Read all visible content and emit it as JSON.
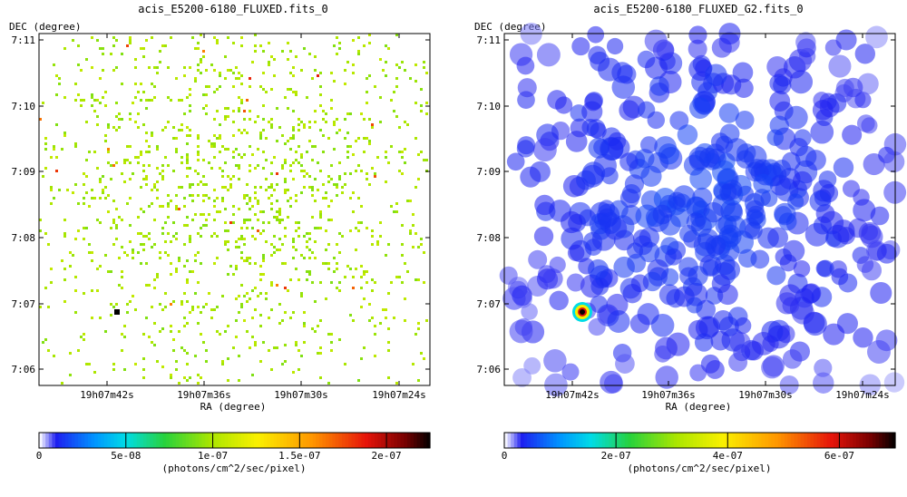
{
  "chart_data": [
    {
      "type": "heatmap",
      "title": "acis_E5200-6180_FLUXED.fits_0",
      "xlabel": "RA (degree)",
      "ylabel": "DEC (degree)",
      "x_ticks": [
        "19h07m42s",
        "19h07m36s",
        "19h07m30s",
        "19h07m24s"
      ],
      "y_ticks": [
        "7:11",
        "7:10",
        "7:09",
        "7:08",
        "7:07",
        "7:06"
      ],
      "colorbar": {
        "label": "(photons/cm^2/sec/pixel)",
        "range": [
          0,
          2.25e-07
        ],
        "ticks": [
          {
            "label": "0",
            "value": 0
          },
          {
            "label": "5e-08",
            "value": 5e-08
          },
          {
            "label": "1e-07",
            "value": 1e-07
          },
          {
            "label": "1.5e-07",
            "value": 1.5e-07
          },
          {
            "label": "2e-07",
            "value": 2e-07
          }
        ]
      },
      "description_seed": 7,
      "style": "sparse"
    },
    {
      "type": "heatmap",
      "title": "acis_E5200-6180_FLUXED_G2.fits_0",
      "xlabel": "RA (degree)",
      "ylabel": "DEC (degree)",
      "x_ticks": [
        "19h07m42s",
        "19h07m36s",
        "19h07m30s",
        "19h07m24s"
      ],
      "y_ticks": [
        "7:11",
        "7:10",
        "7:09",
        "7:08",
        "7:07",
        "7:06"
      ],
      "colorbar": {
        "label": "(photons/cm^2/sec/pixel)",
        "range": [
          0,
          7e-07
        ],
        "ticks": [
          {
            "label": "0",
            "value": 0
          },
          {
            "label": "2e-07",
            "value": 2e-07
          },
          {
            "label": "4e-07",
            "value": 4e-07
          },
          {
            "label": "6e-07",
            "value": 6e-07
          }
        ]
      },
      "description_seed": 11,
      "style": "smooth"
    }
  ]
}
